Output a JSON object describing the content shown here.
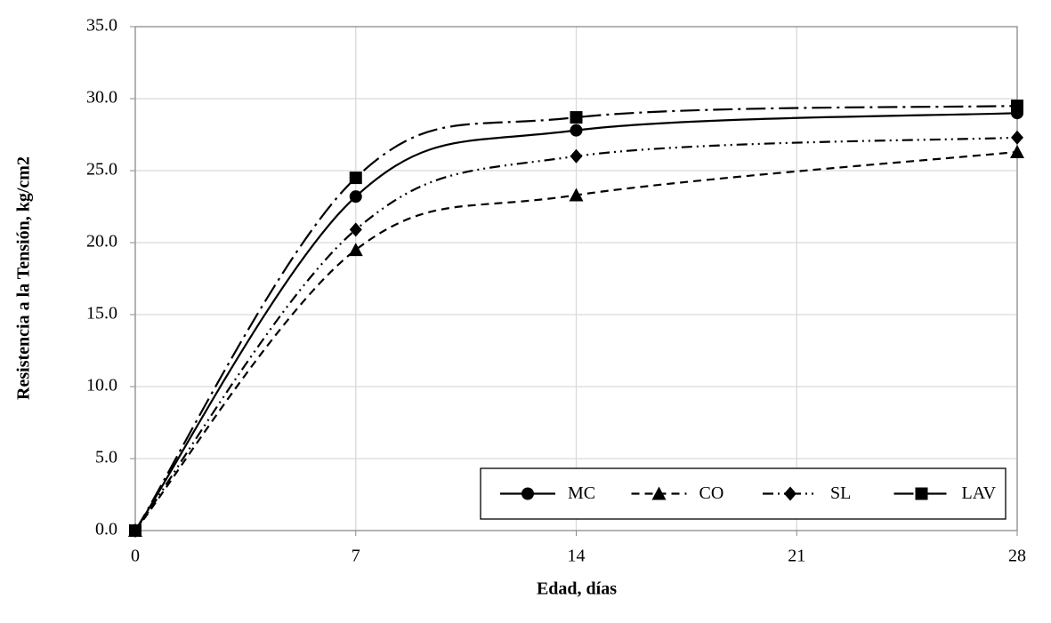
{
  "chart_data": {
    "type": "line",
    "x_label": "Edad, días",
    "y_label": "Resistencia a la Tensión, kg/cm2",
    "x": [
      0,
      7,
      14,
      28
    ],
    "series": [
      {
        "name": "MC",
        "color": "#000000",
        "marker": "circle",
        "dash": "solid",
        "values": [
          0,
          23.2,
          27.8,
          29.0
        ]
      },
      {
        "name": "CO",
        "color": "#000000",
        "marker": "triangle",
        "dash": "dashed",
        "values": [
          0,
          19.5,
          23.3,
          26.3
        ]
      },
      {
        "name": "SL",
        "color": "#000000",
        "marker": "diamond",
        "dash": "dashdotdot",
        "values": [
          0,
          20.9,
          26.0,
          27.3
        ]
      },
      {
        "name": "LAV",
        "color": "#000000",
        "marker": "square",
        "dash": "longdashdot",
        "values": [
          0,
          24.5,
          28.7,
          29.5
        ]
      }
    ],
    "xlim": [
      0,
      28
    ],
    "xticks": [
      0,
      7,
      14,
      21,
      28
    ],
    "ylim": [
      0,
      35
    ],
    "yticks": [
      {
        "value": 0,
        "label": "0.0"
      },
      {
        "value": 5,
        "label": "5.0"
      },
      {
        "value": 10,
        "label": "10.0"
      },
      {
        "value": 15,
        "label": "15.0"
      },
      {
        "value": 20,
        "label": "20.0"
      },
      {
        "value": 25,
        "label": "25.0"
      },
      {
        "value": 30,
        "label": "30.0"
      },
      {
        "value": 35,
        "label": "35.0"
      }
    ],
    "grid": true,
    "smooth": true,
    "legend": "lower right"
  }
}
